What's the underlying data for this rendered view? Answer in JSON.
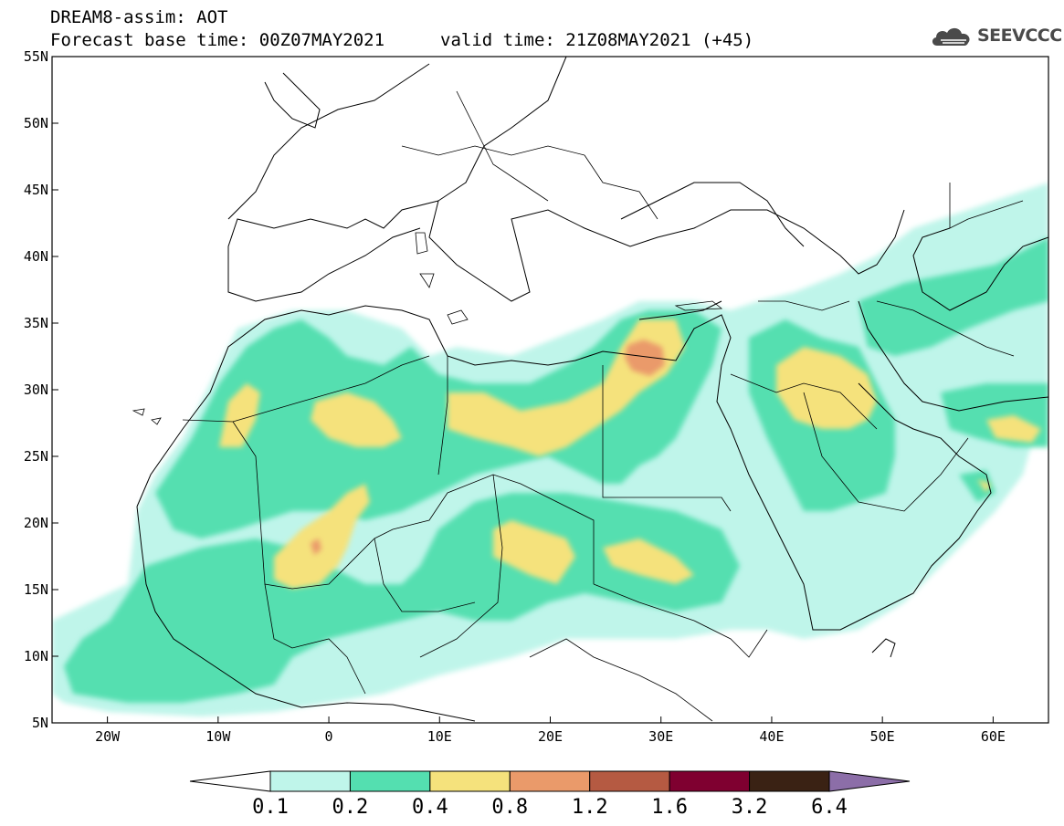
{
  "header": {
    "title_line1": "DREAM8-assim: AOT",
    "title_line2": "Forecast base time: 00Z07MAY2021",
    "valid_time": "valid time: 21Z08MAY2021 (+45)"
  },
  "logo": {
    "text": "SEEVCCC",
    "icon": "cloud-icon"
  },
  "map": {
    "variable": "AOT",
    "lon_range": [
      -25,
      65
    ],
    "lat_range": [
      5,
      55
    ],
    "lat_ticks": [
      "55N",
      "50N",
      "45N",
      "40N",
      "35N",
      "30N",
      "25N",
      "20N",
      "15N",
      "10N",
      "5N"
    ],
    "lon_ticks": [
      "20W",
      "10W",
      "0",
      "10E",
      "20E",
      "30E",
      "40E",
      "50E",
      "60E"
    ]
  },
  "colorbar": {
    "levels": [
      "0.1",
      "0.2",
      "0.4",
      "0.8",
      "1.2",
      "1.6",
      "3.2",
      "6.4"
    ],
    "colors": [
      "#ffffff",
      "#bff5ea",
      "#54dfb0",
      "#f5e27c",
      "#ea9a6a",
      "#b55a42",
      "#7f0030",
      "#3a2214",
      "#8c6ea8"
    ]
  }
}
